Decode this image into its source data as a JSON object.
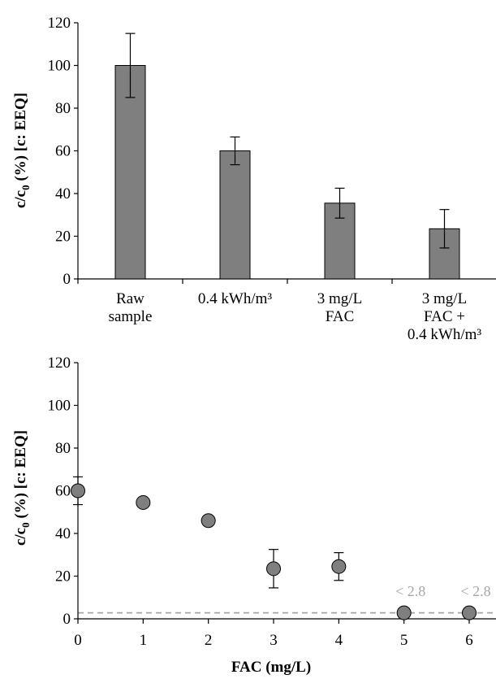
{
  "chart_data": [
    {
      "type": "bar",
      "title": "",
      "ylabel_main": "c/c",
      "ylabel_sub": "0",
      "ylabel_rest": " (%) [c: EEQ]",
      "xlabel": "",
      "ylim": [
        0,
        120
      ],
      "yticks": [
        "0",
        "20",
        "40",
        "60",
        "80",
        "100",
        "120"
      ],
      "categories": [
        [
          "Raw",
          "sample"
        ],
        [
          "0.4 kWh/m³"
        ],
        [
          "3 mg/L",
          "FAC"
        ],
        [
          "3 mg/L",
          "FAC +",
          "0.4 kWh/m³"
        ]
      ],
      "values": [
        100,
        60,
        35.5,
        23.5
      ],
      "error": [
        15,
        6.5,
        7,
        9
      ],
      "colors": {
        "bar": "#7f7f7f"
      }
    },
    {
      "type": "scatter",
      "title": "",
      "ylabel_main": "c/c",
      "ylabel_sub": "0",
      "ylabel_rest": " (%) [c: EEQ]",
      "xlabel": "FAC (mg/L)",
      "xlim": [
        0,
        6
      ],
      "ylim": [
        0,
        120
      ],
      "xticks": [
        "0",
        "1",
        "2",
        "3",
        "4",
        "5",
        "6"
      ],
      "yticks": [
        "0",
        "20",
        "40",
        "60",
        "80",
        "100",
        "120"
      ],
      "x": [
        0,
        1,
        2,
        3,
        4,
        5,
        6
      ],
      "y": [
        60,
        54.5,
        46,
        23.5,
        24.5,
        2.8,
        2.8
      ],
      "error": [
        6.5,
        0,
        0,
        9,
        6.5,
        0,
        0
      ],
      "limit_of_detection": 2.8,
      "annotations": [
        {
          "x": 5,
          "text": "< 2.8"
        },
        {
          "x": 6,
          "text": "< 2.8"
        }
      ],
      "colors": {
        "marker": "#7f7f7f",
        "lod_line": "#a6a6a6"
      }
    }
  ]
}
